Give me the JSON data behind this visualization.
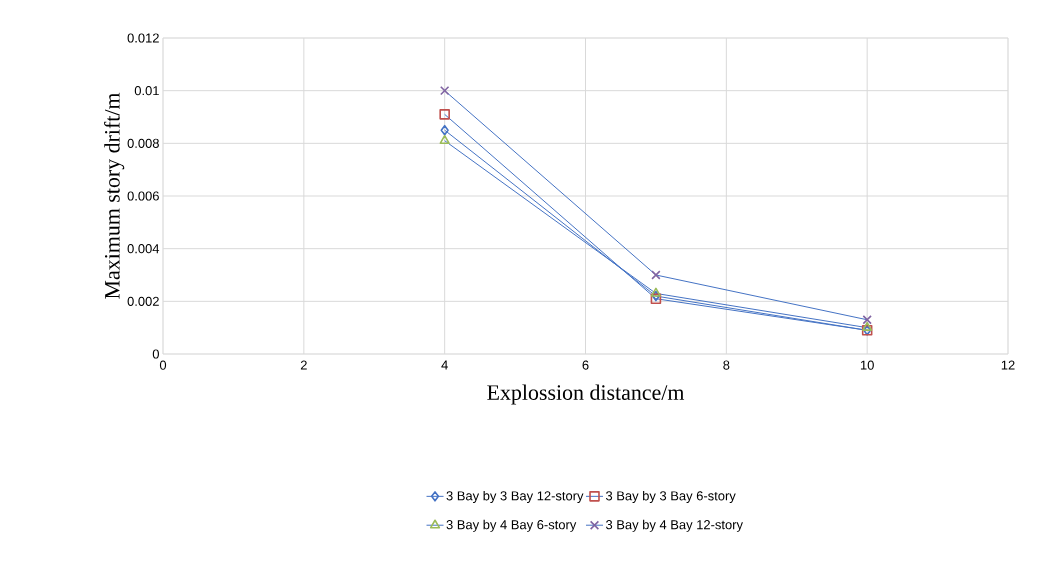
{
  "chart_data": {
    "type": "line",
    "xlabel": "Explossion distance/m",
    "ylabel": "Maximum story drift/m",
    "xlim": [
      0,
      12
    ],
    "xticks": [
      0,
      2,
      4,
      6,
      8,
      10,
      12
    ],
    "ylim": [
      0,
      0.012
    ],
    "yticks": [
      0,
      0.002,
      0.004,
      0.006,
      0.008,
      {
        "value": 0.01,
        "label": "0.01"
      },
      0.012
    ],
    "grid": true,
    "legend": "bottom",
    "series": [
      {
        "name": "3 Bay by 3 Bay 12-story",
        "color": "#4472c4",
        "marker": "diamond",
        "x": [
          4,
          7,
          10
        ],
        "values": [
          0.0085,
          0.0022,
          0.0009
        ]
      },
      {
        "name": "3 Bay by 3 Bay 6-story",
        "color": "#c0504d",
        "marker": "square",
        "x": [
          4,
          7,
          10
        ],
        "values": [
          0.0091,
          0.0021,
          0.0009
        ]
      },
      {
        "name": "3 Bay by 4 Bay 6-story",
        "color": "#9bbb59",
        "marker": "triangle",
        "x": [
          4,
          7,
          10
        ],
        "values": [
          0.0081,
          0.0023,
          0.001
        ]
      },
      {
        "name": "3 Bay by 4 Bay 12-story",
        "color": "#8064a2",
        "marker": "cross",
        "x": [
          4,
          7,
          10
        ],
        "values": [
          0.01,
          0.003,
          0.0013
        ]
      }
    ]
  }
}
